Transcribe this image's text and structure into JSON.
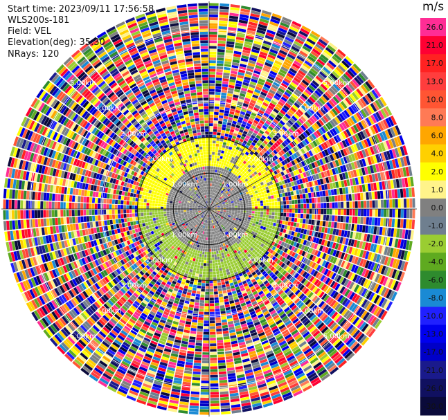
{
  "meta": {
    "start_time": "Start time: 2023/09/11 17:56:58",
    "instrument": "WLS200s-181",
    "field": "Field: VEL",
    "elevation": "Elevation(deg): 35.30",
    "nrays": "NRays: 120"
  },
  "chart_data": {
    "type": "heatmap",
    "projection": "polar-ppi",
    "field": "VEL",
    "units": "m/s",
    "n_rays": 120,
    "range_rings": [
      {
        "label": "1.00km",
        "km": 1.0
      },
      {
        "label": "2.00km",
        "km": 2.0
      },
      {
        "label": "3.00km",
        "km": 3.0
      },
      {
        "label": "4.00km",
        "km": 4.0
      },
      {
        "label": "5.00km",
        "km": 5.0
      }
    ],
    "max_range_km": 5.8,
    "regions": [
      {
        "from_km": 0.0,
        "to_km": 1.2,
        "dominant_value": 0.0
      },
      {
        "from_km": 1.2,
        "to_km": 2.0,
        "north_value": 2.0,
        "south_value": -2.0
      },
      {
        "from_km": 2.0,
        "to_km": 5.8,
        "dominant_value": "noise"
      }
    ],
    "colorbar": {
      "unit": "m/s",
      "ticks": [
        "26.0",
        "21.0",
        "17.0",
        "13.0",
        "10.0",
        "8.0",
        "6.0",
        "4.0",
        "2.0",
        "1.0",
        "0.0",
        "-1.0",
        "-2.0",
        "-4.0",
        "-6.0",
        "-8.0",
        "-10.0",
        "-13.0",
        "-17.0",
        "-21.0",
        "-26.0",
        "-30.0"
      ],
      "colors": [
        "#ff2d95",
        "#ff0033",
        "#ff2222",
        "#ff3d3d",
        "#ff5533",
        "#ff7a55",
        "#ffa600",
        "#ffd000",
        "#ffff00",
        "#fff38a",
        "#808080",
        "#6f7f8f",
        "#9acd32",
        "#5faa20",
        "#2e8b2e",
        "#1a8ad4",
        "#2020ff",
        "#0000ee",
        "#0000c8",
        "#1a1a8c",
        "#101060",
        "#0a0a3a"
      ]
    }
  }
}
